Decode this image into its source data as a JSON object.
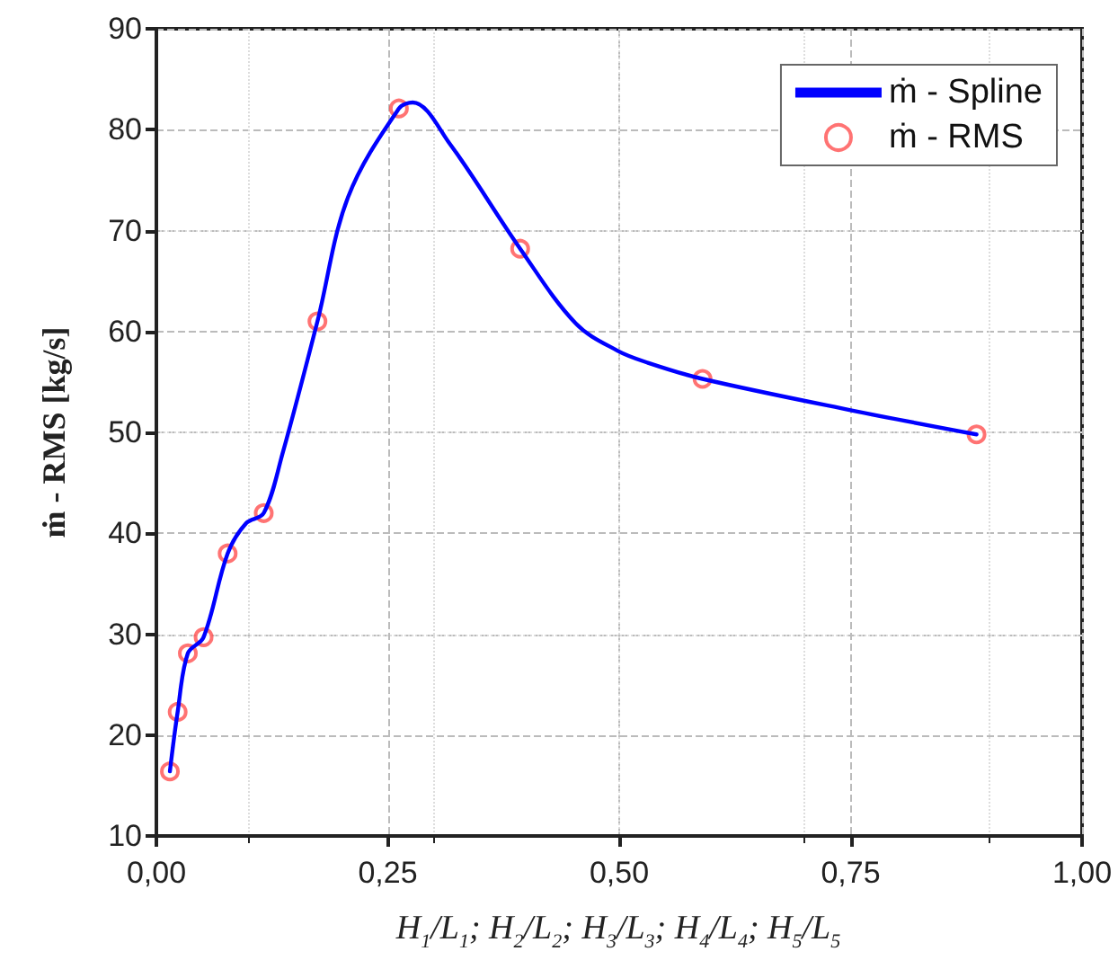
{
  "chart_data": {
    "type": "line",
    "xlabel": "H$_{1}$/L$_{1}$; H$_{2}$/L$_{2}$; H$_{3}$/L$_{3}$; H$_{4}$/L$_{4}$; H$_{5}$/L$_{5}$",
    "ylabel": "ṁ - RMS [kg/s]",
    "xlim": [
      0,
      1
    ],
    "xticks": [
      {
        "value": 0,
        "label": "0,00"
      },
      {
        "value": 0.25,
        "label": "0,25"
      },
      {
        "value": 0.5,
        "label": "0,50"
      },
      {
        "value": 0.75,
        "label": "0,75"
      },
      {
        "value": 1,
        "label": "1,00"
      }
    ],
    "ylim": [
      10,
      90
    ],
    "yticks": [
      10,
      20,
      30,
      40,
      50,
      60,
      70,
      80,
      90
    ],
    "grid": true,
    "legend": "top right",
    "series": [
      {
        "name": "ṁ - Spline",
        "type": "line",
        "color": "#0000ff",
        "marker": "none",
        "line_style": "solid",
        "x": [
          0.0146,
          0.023,
          0.034,
          0.051,
          0.077,
          0.097,
          0.116,
          0.136,
          0.174,
          0.207,
          0.262,
          0.277,
          0.317,
          0.393,
          0.453,
          0.498,
          0.531,
          0.59,
          0.75,
          0.886
        ],
        "values": [
          16.4,
          22.3,
          28.1,
          29.7,
          38.0,
          41.0,
          42.0,
          47.8,
          61.0,
          73.3,
          82.1,
          82.7,
          78.6,
          68.2,
          60.8,
          58.1,
          56.9,
          55.3,
          52.2,
          49.8
        ]
      },
      {
        "name": "ṁ - RMS",
        "type": "scatter",
        "color": "#ff5050",
        "marker": "circle",
        "x": [
          0.0146,
          0.023,
          0.034,
          0.051,
          0.077,
          0.116,
          0.174,
          0.262,
          0.393,
          0.59,
          0.886
        ],
        "values": [
          16.4,
          22.3,
          28.1,
          29.7,
          38.0,
          42.0,
          61.0,
          82.1,
          68.2,
          55.3,
          49.8
        ]
      }
    ]
  }
}
